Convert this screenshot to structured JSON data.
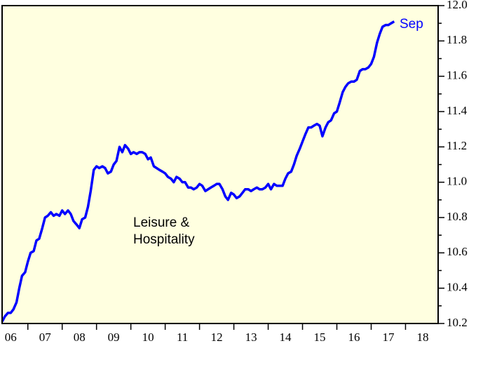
{
  "chart_data": {
    "type": "line",
    "annotations": [
      "Leisure &",
      "Hospitality",
      "Sep"
    ],
    "xlim": [
      2006.25,
      2018.95
    ],
    "xticks": [
      {
        "value": 2006.5,
        "label": "06"
      },
      {
        "value": 2007.5,
        "label": "07"
      },
      {
        "value": 2008.5,
        "label": "08"
      },
      {
        "value": 2009.5,
        "label": "09"
      },
      {
        "value": 2010.5,
        "label": "10"
      },
      {
        "value": 2011.5,
        "label": "11"
      },
      {
        "value": 2012.5,
        "label": "12"
      },
      {
        "value": 2013.5,
        "label": "13"
      },
      {
        "value": 2014.5,
        "label": "14"
      },
      {
        "value": 2015.5,
        "label": "15"
      },
      {
        "value": 2016.5,
        "label": "16"
      },
      {
        "value": 2017.5,
        "label": "17"
      },
      {
        "value": 2018.5,
        "label": "18"
      }
    ],
    "x_minor_ticks": [
      2007,
      2008,
      2009,
      2010,
      2011,
      2012,
      2013,
      2014,
      2015,
      2016,
      2017,
      2018
    ],
    "ylim": [
      10.2,
      12.0
    ],
    "yticks": [
      10.2,
      10.4,
      10.6,
      10.8,
      {
        "value": 11.0,
        "label": "11.0"
      },
      11.2,
      11.4,
      11.6,
      11.8,
      {
        "value": 12.0,
        "label": "12.0"
      }
    ],
    "y_minor_ticks": [
      10.3,
      10.5,
      10.7,
      10.9,
      11.1,
      11.3,
      11.5,
      11.7,
      11.9
    ],
    "background": "#ffffe0",
    "x": [
      2006.25,
      2006.33,
      2006.42,
      2006.5,
      2006.58,
      2006.67,
      2006.75,
      2006.83,
      2006.92,
      2007,
      2007.08,
      2007.17,
      2007.25,
      2007.33,
      2007.42,
      2007.5,
      2007.58,
      2007.67,
      2007.75,
      2007.83,
      2007.92,
      2008,
      2008.08,
      2008.17,
      2008.25,
      2008.33,
      2008.42,
      2008.5,
      2008.58,
      2008.67,
      2008.75,
      2008.83,
      2008.92,
      2009,
      2009.08,
      2009.17,
      2009.25,
      2009.33,
      2009.42,
      2009.5,
      2009.58,
      2009.67,
      2009.75,
      2009.83,
      2009.92,
      2010,
      2010.08,
      2010.17,
      2010.25,
      2010.33,
      2010.42,
      2010.5,
      2010.58,
      2010.67,
      2010.75,
      2010.83,
      2010.92,
      2011,
      2011.08,
      2011.17,
      2011.25,
      2011.33,
      2011.42,
      2011.5,
      2011.58,
      2011.67,
      2011.75,
      2011.83,
      2011.92,
      2012,
      2012.08,
      2012.17,
      2012.25,
      2012.33,
      2012.42,
      2012.5,
      2012.58,
      2012.67,
      2012.75,
      2012.83,
      2012.92,
      2013,
      2013.08,
      2013.17,
      2013.25,
      2013.33,
      2013.42,
      2013.5,
      2013.58,
      2013.67,
      2013.75,
      2013.83,
      2013.92,
      2014,
      2014.08,
      2014.17,
      2014.25,
      2014.33,
      2014.42,
      2014.5,
      2014.58,
      2014.67,
      2014.75,
      2014.83,
      2014.92,
      2015,
      2015.08,
      2015.17,
      2015.25,
      2015.33,
      2015.42,
      2015.5,
      2015.58,
      2015.67,
      2015.75,
      2015.83,
      2015.92,
      2016,
      2016.08,
      2016.17,
      2016.25,
      2016.33,
      2016.42,
      2016.5,
      2016.58,
      2016.67,
      2016.75,
      2016.83,
      2016.92,
      2017,
      2017.08,
      2017.17,
      2017.25,
      2017.33,
      2017.42,
      2017.5,
      2017.58,
      2017.67
    ],
    "series": [
      {
        "color": "#0000ff",
        "values": [
          10.21,
          10.24,
          10.26,
          10.26,
          10.28,
          10.32,
          10.4,
          10.47,
          10.49,
          10.55,
          10.6,
          10.61,
          10.67,
          10.68,
          10.74,
          10.8,
          10.81,
          10.83,
          10.81,
          10.82,
          10.81,
          10.84,
          10.82,
          10.84,
          10.82,
          10.78,
          10.76,
          10.74,
          10.79,
          10.8,
          10.86,
          10.95,
          11.07,
          11.09,
          11.08,
          11.09,
          11.08,
          11.05,
          11.06,
          11.1,
          11.12,
          11.2,
          11.17,
          11.21,
          11.19,
          11.16,
          11.17,
          11.16,
          11.17,
          11.17,
          11.16,
          11.13,
          11.14,
          11.09,
          11.08,
          11.07,
          11.06,
          11.05,
          11.03,
          11.02,
          11.0,
          11.03,
          11.02,
          11.0,
          11.0,
          10.97,
          10.97,
          10.96,
          10.97,
          10.99,
          10.98,
          10.95,
          10.96,
          10.97,
          10.98,
          10.99,
          10.99,
          10.96,
          10.92,
          10.9,
          10.94,
          10.93,
          10.91,
          10.92,
          10.94,
          10.96,
          10.96,
          10.95,
          10.96,
          10.97,
          10.96,
          10.96,
          10.97,
          10.99,
          10.96,
          10.99,
          10.98,
          10.98,
          10.98,
          11.02,
          11.05,
          11.06,
          11.1,
          11.15,
          11.19,
          11.23,
          11.27,
          11.31,
          11.31,
          11.32,
          11.33,
          11.32,
          11.26,
          11.31,
          11.34,
          11.35,
          11.39,
          11.4,
          11.45,
          11.51,
          11.54,
          11.56,
          11.57,
          11.57,
          11.58,
          11.63,
          11.64,
          11.64,
          11.65,
          11.67,
          11.71,
          11.79,
          11.84,
          11.88,
          11.89,
          11.89,
          11.9,
          11.91
        ]
      }
    ]
  }
}
